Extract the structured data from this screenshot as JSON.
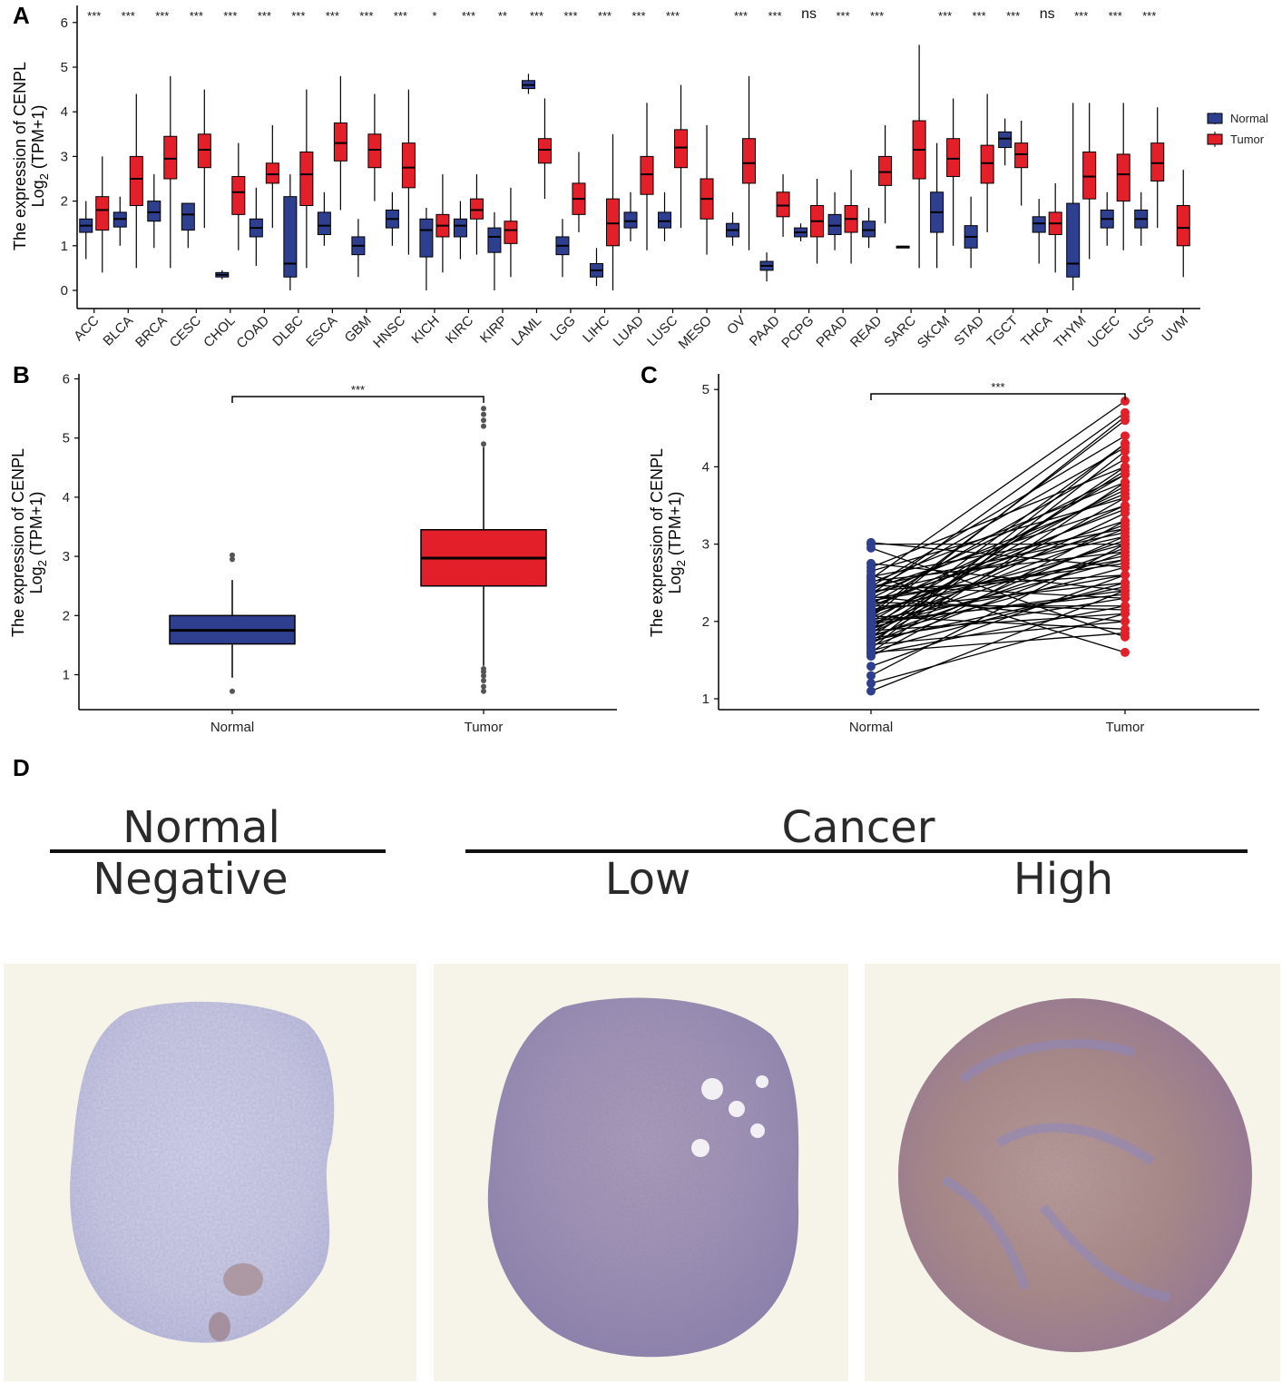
{
  "panels": {
    "a": "A",
    "b": "B",
    "c": "C",
    "d": "D"
  },
  "colors": {
    "normal": "#2e3f8f",
    "tumor": "#e3202a",
    "text": "#000000"
  },
  "chart_data": [
    {
      "id": "A",
      "type": "box",
      "ylabel_line1": "The expression of CENPL",
      "ylabel_line2_prefix": "Log",
      "ylabel_line2_sub": "2",
      "ylabel_line2_suffix": " (TPM+1)",
      "ylim": [
        -0.4,
        6.3
      ],
      "yticks": [
        0,
        1,
        2,
        3,
        4,
        5,
        6
      ],
      "legend": {
        "normal": "Normal",
        "tumor": "Tumor"
      },
      "categories": [
        {
          "name": "ACC",
          "sig": "***",
          "normal": [
            0.7,
            1.3,
            1.45,
            1.6,
            2.0
          ],
          "tumor": [
            0.4,
            1.35,
            1.8,
            2.1,
            3.0
          ]
        },
        {
          "name": "BLCA",
          "sig": "***",
          "normal": [
            1.0,
            1.42,
            1.6,
            1.75,
            2.1
          ],
          "tumor": [
            0.5,
            1.9,
            2.5,
            3.0,
            4.4
          ]
        },
        {
          "name": "BRCA",
          "sig": "***",
          "normal": [
            0.95,
            1.55,
            1.75,
            2.0,
            2.6
          ],
          "tumor": [
            0.5,
            2.5,
            2.95,
            3.45,
            4.8
          ]
        },
        {
          "name": "CESC",
          "sig": "***",
          "normal": [
            0.95,
            1.35,
            1.7,
            1.95,
            1.95
          ],
          "tumor": [
            1.4,
            2.75,
            3.15,
            3.5,
            4.5
          ]
        },
        {
          "name": "CHOL",
          "sig": "***",
          "normal": [
            0.25,
            0.3,
            0.35,
            0.4,
            0.45
          ],
          "tumor": [
            0.9,
            1.7,
            2.2,
            2.55,
            3.3
          ]
        },
        {
          "name": "COAD",
          "sig": "***",
          "normal": [
            0.55,
            1.2,
            1.4,
            1.6,
            2.3
          ],
          "tumor": [
            1.4,
            2.4,
            2.6,
            2.85,
            3.7
          ]
        },
        {
          "name": "DLBC",
          "sig": "***",
          "normal": [
            0.0,
            0.3,
            0.6,
            2.1,
            2.6
          ],
          "tumor": [
            0.5,
            1.9,
            2.6,
            3.1,
            4.5
          ]
        },
        {
          "name": "ESCA",
          "sig": "***",
          "normal": [
            1.0,
            1.25,
            1.45,
            1.75,
            2.2
          ],
          "tumor": [
            1.8,
            2.9,
            3.3,
            3.75,
            4.8
          ]
        },
        {
          "name": "GBM",
          "sig": "***",
          "normal": [
            0.3,
            0.8,
            1.0,
            1.2,
            1.6
          ],
          "tumor": [
            2.0,
            2.75,
            3.15,
            3.5,
            4.4
          ]
        },
        {
          "name": "HNSC",
          "sig": "***",
          "normal": [
            1.0,
            1.4,
            1.6,
            1.8,
            2.2
          ],
          "tumor": [
            0.8,
            2.3,
            2.75,
            3.3,
            4.5
          ]
        },
        {
          "name": "KICH",
          "sig": "*",
          "normal": [
            0.0,
            0.75,
            1.35,
            1.6,
            1.85
          ],
          "tumor": [
            0.4,
            1.2,
            1.45,
            1.7,
            2.6
          ]
        },
        {
          "name": "KIRC",
          "sig": "***",
          "normal": [
            0.7,
            1.2,
            1.45,
            1.6,
            2.0
          ],
          "tumor": [
            0.8,
            1.6,
            1.8,
            2.05,
            2.6
          ]
        },
        {
          "name": "KIRP",
          "sig": "**",
          "normal": [
            0.0,
            0.85,
            1.2,
            1.4,
            1.75
          ],
          "tumor": [
            0.3,
            1.05,
            1.35,
            1.55,
            2.3
          ]
        },
        {
          "name": "LAML",
          "sig": "***",
          "normal": [
            4.4,
            4.52,
            4.6,
            4.7,
            4.85
          ],
          "tumor": [
            2.05,
            2.85,
            3.15,
            3.4,
            4.3
          ]
        },
        {
          "name": "LGG",
          "sig": "***",
          "normal": [
            0.3,
            0.8,
            1.0,
            1.2,
            1.6
          ],
          "tumor": [
            1.3,
            1.7,
            2.05,
            2.4,
            3.1
          ]
        },
        {
          "name": "LIHC",
          "sig": "***",
          "normal": [
            0.1,
            0.3,
            0.45,
            0.6,
            0.95
          ],
          "tumor": [
            0.0,
            1.0,
            1.5,
            2.05,
            3.5
          ]
        },
        {
          "name": "LUAD",
          "sig": "***",
          "normal": [
            1.1,
            1.4,
            1.55,
            1.75,
            2.2
          ],
          "tumor": [
            0.9,
            2.15,
            2.6,
            3.0,
            4.2
          ]
        },
        {
          "name": "LUSC",
          "sig": "***",
          "normal": [
            1.1,
            1.4,
            1.55,
            1.75,
            2.2
          ],
          "tumor": [
            1.4,
            2.75,
            3.2,
            3.6,
            4.6
          ]
        },
        {
          "name": "MESO",
          "sig": "",
          "normal": null,
          "tumor": [
            0.8,
            1.6,
            2.05,
            2.5,
            3.7
          ]
        },
        {
          "name": "OV",
          "sig": "***",
          "normal": [
            1.0,
            1.2,
            1.35,
            1.5,
            1.75
          ],
          "tumor": [
            0.9,
            2.4,
            2.85,
            3.4,
            4.8
          ]
        },
        {
          "name": "PAAD",
          "sig": "***",
          "normal": [
            0.2,
            0.45,
            0.55,
            0.65,
            0.85
          ],
          "tumor": [
            1.2,
            1.65,
            1.9,
            2.2,
            2.6
          ]
        },
        {
          "name": "PCPG",
          "sig": "ns",
          "normal": [
            1.1,
            1.2,
            1.3,
            1.4,
            1.5
          ],
          "tumor": [
            0.6,
            1.2,
            1.55,
            1.9,
            2.5
          ]
        },
        {
          "name": "PRAD",
          "sig": "***",
          "normal": [
            0.9,
            1.25,
            1.45,
            1.7,
            2.2
          ],
          "tumor": [
            0.6,
            1.3,
            1.6,
            1.9,
            2.7
          ]
        },
        {
          "name": "READ",
          "sig": "***",
          "normal": [
            0.95,
            1.2,
            1.35,
            1.55,
            1.85
          ],
          "tumor": [
            1.5,
            2.35,
            2.65,
            3.0,
            3.7
          ]
        },
        {
          "name": "SARC",
          "sig": "",
          "normal": [
            0.95,
            0.97,
            0.98,
            0.99,
            1.0
          ],
          "tumor": [
            0.5,
            2.5,
            3.15,
            3.8,
            5.5
          ]
        },
        {
          "name": "SKCM",
          "sig": "***",
          "normal": [
            0.5,
            1.3,
            1.75,
            2.2,
            3.3
          ],
          "tumor": [
            1.0,
            2.55,
            2.95,
            3.4,
            4.3
          ]
        },
        {
          "name": "STAD",
          "sig": "***",
          "normal": [
            0.5,
            0.95,
            1.2,
            1.45,
            2.1
          ],
          "tumor": [
            1.3,
            2.4,
            2.85,
            3.25,
            4.4
          ]
        },
        {
          "name": "TGCT",
          "sig": "***",
          "normal": [
            2.8,
            3.2,
            3.4,
            3.55,
            3.85
          ],
          "tumor": [
            1.9,
            2.75,
            3.05,
            3.3,
            3.8
          ]
        },
        {
          "name": "THCA",
          "sig": "ns",
          "normal": [
            0.6,
            1.3,
            1.5,
            1.65,
            2.05
          ],
          "tumor": [
            0.4,
            1.25,
            1.5,
            1.75,
            2.4
          ]
        },
        {
          "name": "THYM",
          "sig": "***",
          "normal": [
            0.0,
            0.3,
            0.6,
            1.95,
            4.2
          ],
          "tumor": [
            0.7,
            2.05,
            2.55,
            3.1,
            4.2
          ]
        },
        {
          "name": "UCEC",
          "sig": "***",
          "normal": [
            1.0,
            1.4,
            1.6,
            1.8,
            2.2
          ],
          "tumor": [
            0.9,
            2.0,
            2.6,
            3.05,
            4.2
          ]
        },
        {
          "name": "UCS",
          "sig": "***",
          "normal": [
            1.0,
            1.4,
            1.6,
            1.8,
            2.2
          ],
          "tumor": [
            1.4,
            2.45,
            2.85,
            3.3,
            4.1
          ]
        },
        {
          "name": "UVM",
          "sig": "",
          "normal": null,
          "tumor": [
            0.3,
            1.0,
            1.4,
            1.9,
            2.7
          ]
        }
      ]
    },
    {
      "id": "B",
      "type": "box",
      "ylabel_line1": "The expression of CENPL",
      "ylabel_line2_prefix": "Log",
      "ylabel_line2_sub": "2",
      "ylabel_line2_suffix": " (TPM+1)",
      "ylim": [
        0.6,
        6.0
      ],
      "yticks": [
        1,
        2,
        3,
        4,
        5,
        6
      ],
      "categories": [
        "Normal",
        "Tumor"
      ],
      "sig": "***",
      "normal": {
        "whisker_low": 0.95,
        "q1": 1.52,
        "median": 1.75,
        "q3": 2.0,
        "whisker_high": 2.6,
        "outliers": [
          0.72,
          2.95,
          3.02
        ]
      },
      "tumor": {
        "whisker_low": 1.15,
        "q1": 2.5,
        "median": 2.97,
        "q3": 3.45,
        "whisker_high": 4.85,
        "outliers": [
          0.72,
          0.8,
          0.9,
          0.98,
          1.05,
          1.1,
          4.9,
          5.2,
          5.3,
          5.4,
          5.5
        ]
      }
    },
    {
      "id": "C",
      "type": "paired-scatter",
      "ylabel_line1": "The expression of CENPL",
      "ylabel_line2_prefix": "Log",
      "ylabel_line2_sub": "2",
      "ylabel_line2_suffix": " (TPM+1)",
      "ylim": [
        0.9,
        5.1
      ],
      "yticks": [
        1,
        2,
        3,
        4,
        5
      ],
      "categories": [
        "Normal",
        "Tumor"
      ],
      "sig": "***",
      "pairs": [
        [
          1.1,
          2.4
        ],
        [
          1.2,
          2.1
        ],
        [
          1.3,
          3.0
        ],
        [
          1.42,
          2.6
        ],
        [
          1.55,
          3.3
        ],
        [
          1.58,
          2.2
        ],
        [
          1.6,
          3.8
        ],
        [
          1.62,
          2.5
        ],
        [
          1.65,
          4.2
        ],
        [
          1.68,
          2.9
        ],
        [
          1.7,
          2.0
        ],
        [
          1.72,
          3.1
        ],
        [
          1.75,
          3.6
        ],
        [
          1.78,
          2.3
        ],
        [
          1.8,
          4.0
        ],
        [
          1.82,
          2.7
        ],
        [
          1.85,
          3.4
        ],
        [
          1.88,
          2.1
        ],
        [
          1.9,
          4.3
        ],
        [
          1.92,
          2.8
        ],
        [
          1.95,
          3.2
        ],
        [
          1.97,
          2.4
        ],
        [
          2.0,
          3.9
        ],
        [
          2.02,
          2.6
        ],
        [
          2.05,
          3.5
        ],
        [
          2.07,
          1.9
        ],
        [
          2.1,
          4.6
        ],
        [
          2.12,
          3.0
        ],
        [
          2.15,
          2.5
        ],
        [
          2.17,
          3.7
        ],
        [
          2.2,
          2.2
        ],
        [
          2.22,
          4.1
        ],
        [
          2.25,
          3.3
        ],
        [
          2.27,
          2.8
        ],
        [
          2.3,
          3.9
        ],
        [
          2.32,
          2.0
        ],
        [
          2.35,
          4.7
        ],
        [
          2.37,
          3.1
        ],
        [
          2.4,
          2.6
        ],
        [
          2.42,
          3.5
        ],
        [
          2.45,
          4.4
        ],
        [
          2.47,
          2.3
        ],
        [
          2.5,
          3.8
        ],
        [
          2.52,
          2.9
        ],
        [
          2.55,
          4.85
        ],
        [
          2.58,
          3.2
        ],
        [
          2.6,
          1.6
        ],
        [
          2.65,
          3.6
        ],
        [
          2.7,
          4.0
        ],
        [
          2.75,
          2.4
        ],
        [
          2.95,
          1.8
        ],
        [
          3.0,
          3.0
        ],
        [
          3.02,
          2.7
        ],
        [
          1.6,
          1.85
        ],
        [
          1.7,
          4.3
        ],
        [
          1.9,
          3.05
        ],
        [
          2.0,
          2.35
        ],
        [
          2.1,
          3.25
        ],
        [
          2.2,
          3.45
        ],
        [
          2.3,
          2.75
        ],
        [
          2.4,
          4.25
        ],
        [
          1.8,
          2.95
        ],
        [
          1.95,
          3.75
        ],
        [
          2.25,
          2.15
        ],
        [
          2.35,
          3.65
        ],
        [
          2.05,
          4.65
        ],
        [
          1.75,
          2.45
        ],
        [
          2.15,
          2.85
        ],
        [
          2.45,
          3.15
        ],
        [
          1.85,
          3.95
        ]
      ]
    }
  ],
  "ihc": {
    "normal_header": "Normal",
    "cancer_header": "Cancer",
    "negative_label": "Negative",
    "low_label": "Low",
    "high_label": "High"
  }
}
